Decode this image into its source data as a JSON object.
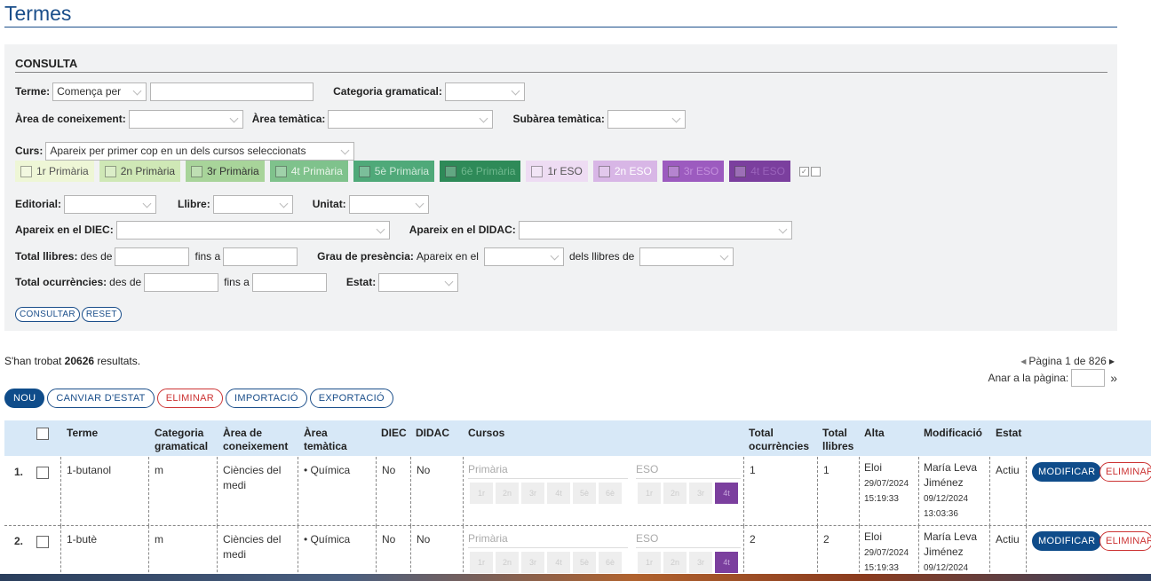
{
  "page": {
    "title": "Termes"
  },
  "consulta": {
    "title": "CONSULTA",
    "terme_label": "Terme:",
    "terme_mode": "Comença per",
    "categoria_label": "Categoria gramatical:",
    "area_label": "Àrea de coneixement:",
    "area_tematica_label": "Àrea temàtica:",
    "subarea_label": "Subàrea temàtica:",
    "curs_label": "Curs:",
    "curs_mode": "Apareix per primer cop en un dels cursos seleccionats",
    "courses": [
      {
        "label": "1r Primària",
        "bg": "#eef6d6",
        "fg": "#555"
      },
      {
        "label": "2n Primària",
        "bg": "#cfe8b6",
        "fg": "#444"
      },
      {
        "label": "3r Primària",
        "bg": "#a8d49a",
        "fg": "#333"
      },
      {
        "label": "4t Primària",
        "bg": "#7fc28c",
        "fg": "#eaf5ea"
      },
      {
        "label": "5è Primària",
        "bg": "#4fa979",
        "fg": "#cfe9d9"
      },
      {
        "label": "6è Primària",
        "bg": "#2e8a58",
        "fg": "#6fb88e"
      },
      {
        "label": "1r ESO",
        "bg": "#eedcf3",
        "fg": "#555"
      },
      {
        "label": "2n ESO",
        "bg": "#d8b6e6",
        "fg": "#fff"
      },
      {
        "label": "3r ESO",
        "bg": "#9c5bbf",
        "fg": "#c490dd"
      },
      {
        "label": "4t ESO",
        "bg": "#7b3f9e",
        "fg": "#9a63bb"
      }
    ],
    "editorial_label": "Editorial:",
    "llibre_label": "Llibre:",
    "unitat_label": "Unitat:",
    "diec_label": "Apareix en el DIEC:",
    "didac_label": "Apareix en el DIDAC:",
    "total_llibres_label": "Total llibres:",
    "des_de": "des de",
    "fins_a": "fins a",
    "grau_label": "Grau de presència:",
    "apareix_en_el": "Apareix en el",
    "dels_llibres_de": "dels llibres de",
    "total_ocurrencies_label": "Total ocurrències:",
    "estat_label": "Estat:",
    "consultar": "CONSULTAR",
    "reset": "RESET"
  },
  "results": {
    "prefix": "S'han trobat ",
    "count": "20626",
    "suffix": " resultats.",
    "pagina": "Pàgina 1 de 826",
    "anar": "Anar a la pàgina:"
  },
  "actions": {
    "nou": "NOU",
    "canviar": "CANVIAR D'ESTAT",
    "eliminar": "ELIMINAR",
    "importacio": "IMPORTACIÓ",
    "exportacio": "EXPORTACIÓ"
  },
  "table": {
    "headers": {
      "terme": "Terme",
      "categoria_1": "Categoria",
      "categoria_2": "gramatical",
      "area_1": "Àrea de",
      "area_2": "coneixement",
      "tematica_1": "Àrea",
      "tematica_2": "temàtica",
      "diec": "DIEC",
      "didac": "DIDAC",
      "cursos": "Cursos",
      "ocur_1": "Total",
      "ocur_2": "ocurrències",
      "llibres_1": "Total",
      "llibres_2": "llibres",
      "alta": "Alta",
      "modificacio": "Modificació",
      "estat": "Estat"
    },
    "cursos_primaria": "Primària",
    "cursos_eso": "ESO",
    "course_boxes": [
      "1r",
      "2n",
      "3r",
      "4t",
      "5è",
      "6è",
      "1r",
      "2n",
      "3r",
      "4t"
    ],
    "row_actions": {
      "modificar": "MODIFICAR",
      "eliminar": "ELIMINAR"
    },
    "rows": [
      {
        "num": "1.",
        "terme": "1-butanol",
        "categoria": "m",
        "area_1": "Ciències del",
        "area_2": "medi",
        "tematica": "• Química",
        "diec": "No",
        "didac": "No",
        "ocurrencies": "1",
        "llibres": "1",
        "alta_user": "Eloi",
        "alta_date": "29/07/2024",
        "alta_time": "15:19:33",
        "mod_user_1": "María Leva",
        "mod_user_2": "Jiménez",
        "mod_date": "09/12/2024",
        "mod_time": "13:03:36",
        "estat": "Actiu"
      },
      {
        "num": "2.",
        "terme": "1-butè",
        "categoria": "m",
        "area_1": "Ciències del",
        "area_2": "medi",
        "tematica": "• Química",
        "diec": "No",
        "didac": "No",
        "ocurrencies": "2",
        "llibres": "2",
        "alta_user": "Eloi",
        "alta_date": "29/07/2024",
        "alta_time": "15:19:33",
        "mod_user_1": "María Leva",
        "mod_user_2": "Jiménez",
        "mod_date": "09/12/2024",
        "mod_time": "",
        "estat": "Actiu"
      }
    ]
  }
}
